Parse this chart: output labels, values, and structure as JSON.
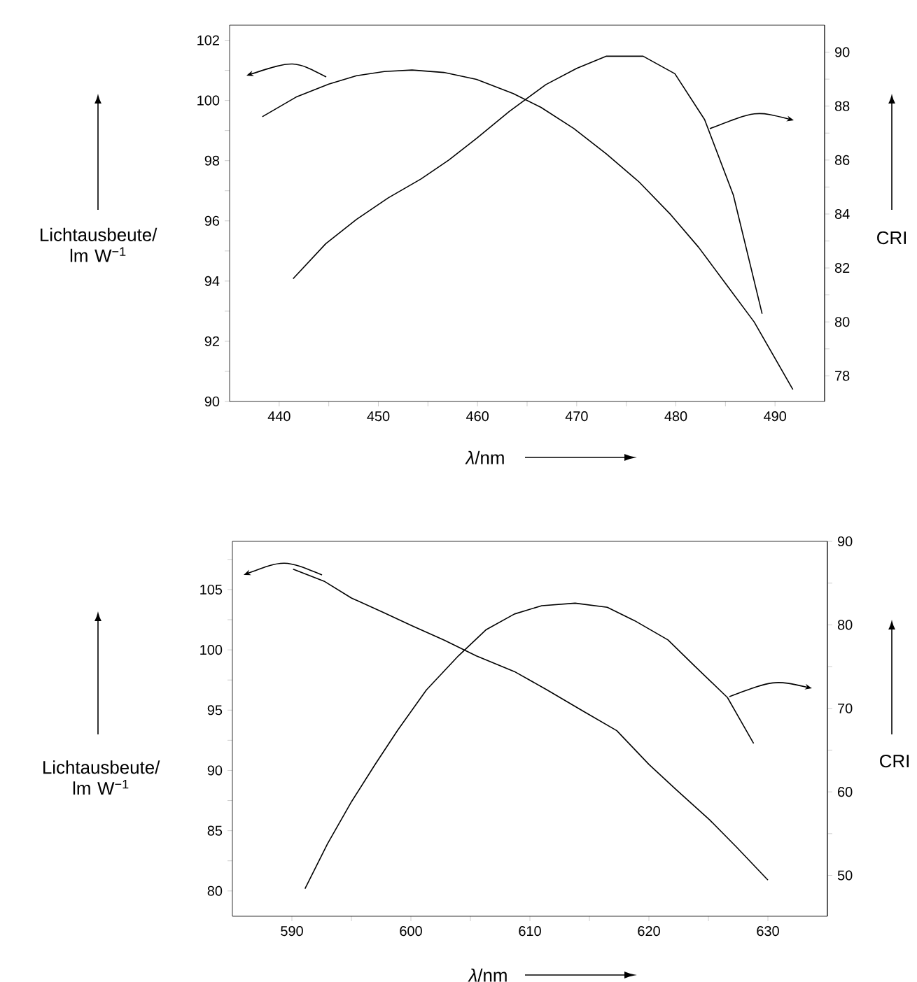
{
  "chart_data": [
    {
      "type": "line",
      "xlabel": "*λ*/nm",
      "ylabel": "Lichtausbeute/ lm W$^{−1}$",
      "y2label": "CRI",
      "marker": "none",
      "xlim": [
        435,
        495
      ],
      "xticks": [
        440,
        {
          "value": 445,
          "label": null
        },
        450,
        {
          "value": 455,
          "label": null
        },
        460,
        {
          "value": 465,
          "label": null
        },
        470,
        {
          "value": 475,
          "label": null
        },
        480,
        {
          "value": 485,
          "label": null
        },
        490
      ],
      "ylim": [
        90,
        102.5
      ],
      "yticks": [
        90,
        {
          "value": 91,
          "label": null
        },
        92,
        {
          "value": 93,
          "label": null
        },
        94,
        {
          "value": 95,
          "label": null
        },
        96,
        {
          "value": 97,
          "label": null
        },
        98,
        {
          "value": 99,
          "label": null
        },
        100,
        {
          "value": 101,
          "label": null
        },
        102
      ],
      "y2lim": [
        77.05,
        91.0
      ],
      "y2ticks": [
        78,
        {
          "value": 79,
          "label": null
        },
        80,
        {
          "value": 81,
          "label": null
        },
        82,
        {
          "value": 83,
          "label": null
        },
        84,
        {
          "value": 85,
          "label": null
        },
        86,
        {
          "value": 87,
          "label": null
        },
        88,
        {
          "value": 89,
          "label": null
        },
        90
      ],
      "series": [
        {
          "color": "#000000",
          "x": [
            438.3,
            441.7,
            445.0,
            447.8,
            450.6,
            453.4,
            456.6,
            459.9,
            463.6,
            466.4,
            469.7,
            473.0,
            476.3,
            479.5,
            482.3,
            485.1,
            487.9,
            491.8
          ],
          "values": [
            99.46,
            100.11,
            100.54,
            100.82,
            100.96,
            101.01,
            100.93,
            100.7,
            100.23,
            99.77,
            99.07,
            98.22,
            97.29,
            96.2,
            95.12,
            93.88,
            92.64,
            90.4
          ]
        },
        {
          "color": "#000000",
          "axis": "y2",
          "x": [
            441.4,
            444.7,
            447.8,
            451.0,
            454.3,
            457.1,
            459.9,
            463.2,
            466.9,
            470.0,
            473.0,
            476.7,
            479.9,
            482.9,
            485.8,
            488.7
          ],
          "values": [
            81.6,
            82.9,
            83.8,
            84.6,
            85.3,
            86.0,
            86.8,
            87.8,
            88.8,
            89.4,
            89.85,
            89.85,
            89.2,
            87.5,
            84.7,
            80.3
          ]
        }
      ]
    },
    {
      "type": "line",
      "xlabel": "*λ*/nm",
      "ylabel": "Lichtausbeute/ lm W$^{−1}$",
      "y2label": "CRI",
      "marker": "none",
      "xlim": [
        585,
        635
      ],
      "xticks": [
        590,
        {
          "value": 595,
          "label": null
        },
        600,
        {
          "value": 605,
          "label": null
        },
        610,
        {
          "value": 615,
          "label": null
        },
        620,
        {
          "value": 625,
          "label": null
        },
        630
      ],
      "ylim": [
        77.9,
        109
      ],
      "yticks": [
        80,
        {
          "value": 82.5,
          "label": null
        },
        85,
        {
          "value": 87.5,
          "label": null
        },
        90,
        {
          "value": 92.5,
          "label": null
        },
        95,
        {
          "value": 97.5,
          "label": null
        },
        100,
        {
          "value": 102.5,
          "label": null
        },
        105,
        {
          "value": 107.5,
          "label": null
        }
      ],
      "y2lim": [
        45.1,
        90
      ],
      "y2ticks": [
        50,
        {
          "value": 55,
          "label": null
        },
        60,
        {
          "value": 65,
          "label": null
        },
        70,
        {
          "value": 75,
          "label": null
        },
        80,
        {
          "value": 85,
          "label": null
        },
        90
      ],
      "series": [
        {
          "color": "#000000",
          "x": [
            590.1,
            592.7,
            595.0,
            597.7,
            600.1,
            602.8,
            605.5,
            608.7,
            611.4,
            614.5,
            617.3,
            620.0,
            622.3,
            625.1,
            627.4,
            630.0
          ],
          "values": [
            106.7,
            105.7,
            104.3,
            103.1,
            102.0,
            100.8,
            99.5,
            98.2,
            96.7,
            94.9,
            93.3,
            90.5,
            88.4,
            85.9,
            83.6,
            80.9
          ]
        },
        {
          "color": "#000000",
          "axis": "y2",
          "x": [
            591.1,
            593.0,
            595.0,
            597.0,
            598.9,
            601.3,
            604.0,
            606.3,
            608.7,
            611.0,
            613.8,
            616.5,
            618.8,
            621.6,
            623.9,
            626.6,
            628.8
          ],
          "values": [
            48.4,
            53.8,
            58.8,
            63.3,
            67.4,
            72.2,
            76.3,
            79.4,
            81.3,
            82.3,
            82.6,
            82.1,
            80.5,
            78.2,
            75.0,
            71.3,
            65.8
          ]
        }
      ]
    }
  ]
}
